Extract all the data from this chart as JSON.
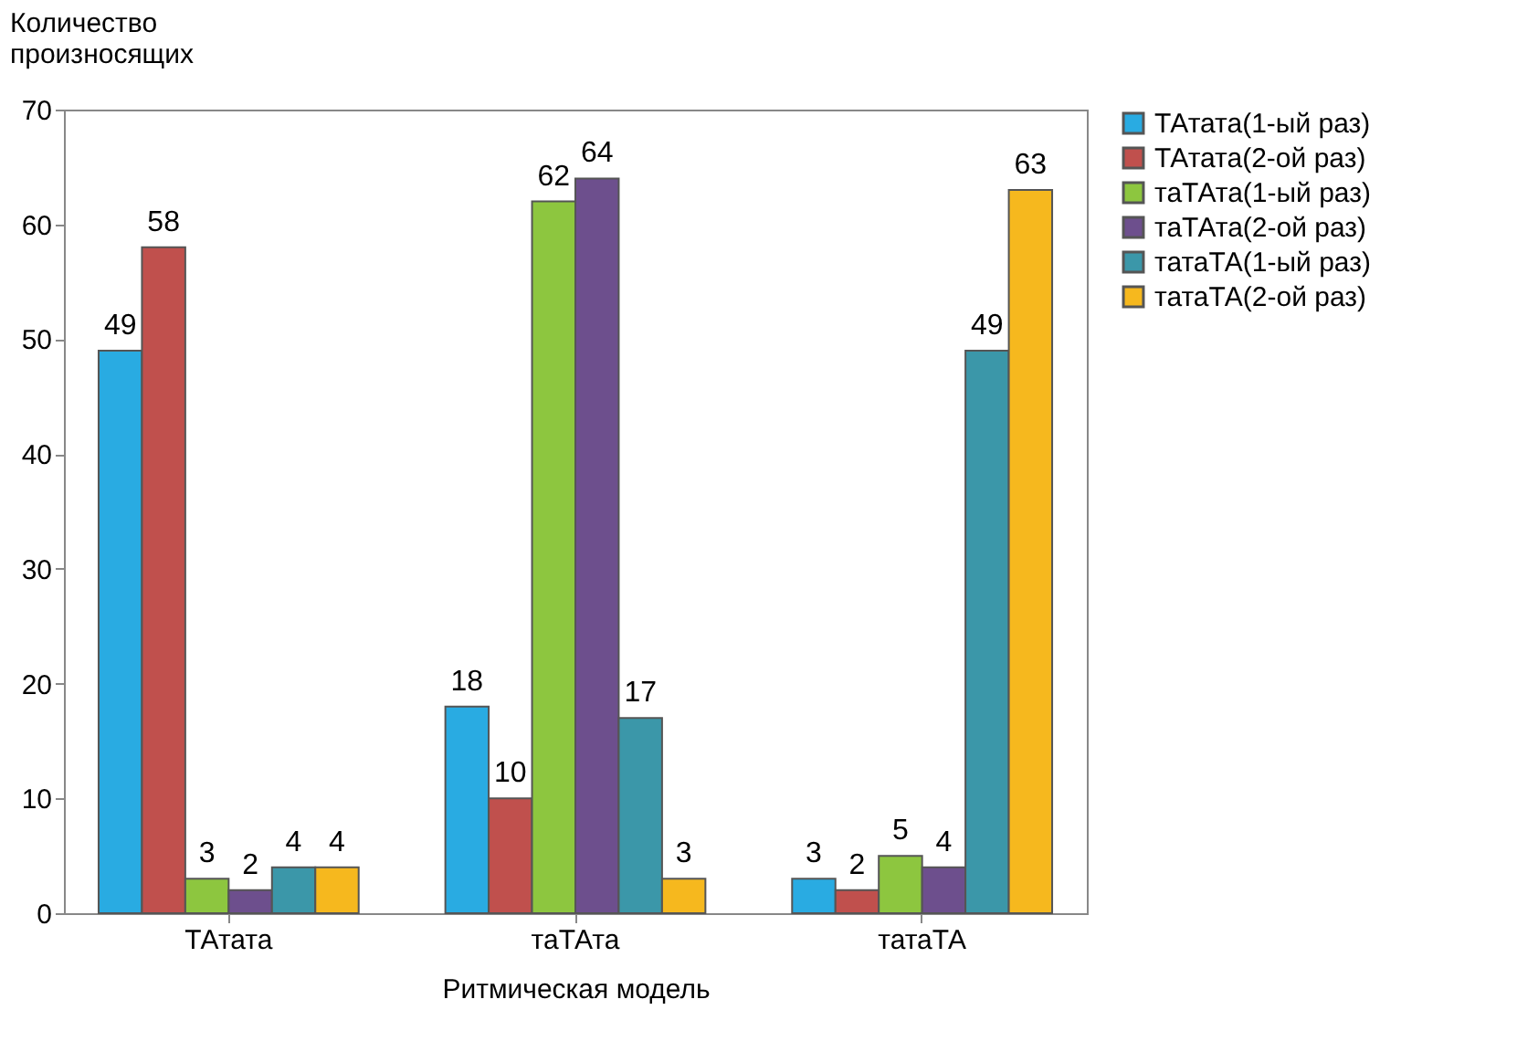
{
  "chart_data": {
    "type": "bar",
    "xlabel": "Ритмическая модель",
    "ylabel": "Количество произносящих",
    "categories": [
      "ТАтата",
      "таТАта",
      "татаТА"
    ],
    "series": [
      {
        "name": "ТАтата(1-ый раз)",
        "color": "#29abe2",
        "values": [
          49,
          18,
          3
        ]
      },
      {
        "name": "ТАтата(2-ой раз)",
        "color": "#c0504d",
        "values": [
          58,
          10,
          2
        ]
      },
      {
        "name": "таТАта(1-ый раз)",
        "color": "#8dc63f",
        "values": [
          3,
          62,
          5
        ]
      },
      {
        "name": "таТАта(2-ой раз)",
        "color": "#6d4f8d",
        "values": [
          2,
          64,
          4
        ]
      },
      {
        "name": "татаТА(1-ый раз)",
        "color": "#3b97a9",
        "values": [
          4,
          17,
          49
        ]
      },
      {
        "name": "татаТА(2-ой раз)",
        "color": "#f6b81e",
        "values": [
          4,
          3,
          63
        ]
      }
    ],
    "ylim": [
      0,
      70
    ],
    "yticks": [
      0,
      10,
      20,
      30,
      40,
      50,
      60,
      70
    ],
    "grid": false,
    "legend": "right",
    "data_labels": true
  }
}
